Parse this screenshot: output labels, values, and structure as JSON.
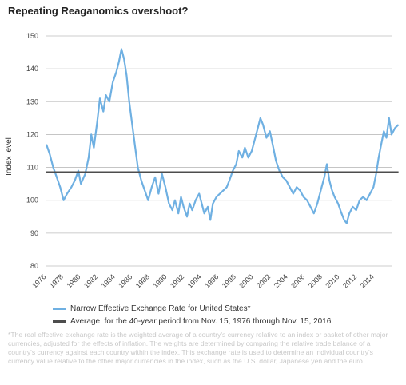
{
  "title": "Repeating Reaganomics overshoot?",
  "ylabel": "Index level",
  "footnote": "*The real effective exchange rate is the weighted average of a country's currency relative to an index or basket of other major currencies, adjusted for the effects of inflation. The weights are determined by comparing the relative trade balance of a country's currency against each country within the index. This exchange rate is used to determine an individual country's currency value relative to the other major currencies in the index, such as the U.S. dollar, Japanese yen and the euro.",
  "colors": {
    "series": "#6fb0e2",
    "average": "#4d4d4d",
    "grid": "#bdbdbd"
  },
  "chart_data": {
    "type": "line",
    "title": "Repeating Reaganomics overshoot?",
    "ylabel": "Index level",
    "xlabel": "",
    "ylim": [
      80,
      150
    ],
    "xlim": [
      1976,
      2016
    ],
    "grid": true,
    "legend_position": "bottom",
    "y_ticks": [
      80,
      90,
      100,
      110,
      120,
      130,
      140,
      150
    ],
    "x_ticks": [
      "1976",
      "1978",
      "1980",
      "1982",
      "1984",
      "1986",
      "1988",
      "1990",
      "1992",
      "1994",
      "1996",
      "1998",
      "2000",
      "2002",
      "2004",
      "2006",
      "2008",
      "2010",
      "2012",
      "2014"
    ],
    "series": [
      {
        "name": "Narrow Effective Exchange Rate for United States*",
        "x": [
          1976.0,
          1976.4,
          1976.8,
          1977.2,
          1977.6,
          1978.0,
          1978.4,
          1978.9,
          1979.3,
          1979.7,
          1980.0,
          1980.5,
          1980.9,
          1981.2,
          1981.5,
          1981.9,
          1982.2,
          1982.6,
          1982.9,
          1983.3,
          1983.7,
          1984.1,
          1984.4,
          1984.7,
          1985.0,
          1985.3,
          1985.6,
          1985.9,
          1986.3,
          1986.6,
          1987.0,
          1987.4,
          1987.8,
          1988.2,
          1988.6,
          1989.0,
          1989.4,
          1989.8,
          1990.2,
          1990.6,
          1990.9,
          1991.3,
          1991.6,
          1991.9,
          1992.3,
          1992.6,
          1992.9,
          1993.3,
          1993.7,
          1994.0,
          1994.3,
          1994.7,
          1995.0,
          1995.3,
          1995.7,
          1996.1,
          1996.5,
          1996.9,
          1997.2,
          1997.6,
          1998.0,
          1998.3,
          1998.7,
          1999.0,
          1999.4,
          1999.8,
          2000.2,
          2000.5,
          2000.8,
          2001.1,
          2001.5,
          2001.9,
          2002.3,
          2002.6,
          2003.0,
          2003.4,
          2003.8,
          2004.2,
          2004.6,
          2005.0,
          2005.4,
          2005.8,
          2006.2,
          2006.6,
          2007.0,
          2007.4,
          2007.8,
          2008.2,
          2008.5,
          2008.8,
          2009.1,
          2009.4,
          2009.8,
          2010.2,
          2010.5,
          2010.8,
          2011.1,
          2011.5,
          2011.9,
          2012.3,
          2012.7,
          2013.1,
          2013.5,
          2013.9,
          2014.2,
          2014.5,
          2014.8,
          2015.1,
          2015.4,
          2015.7,
          2016.0,
          2016.4,
          2016.8
        ],
        "values": [
          117,
          114,
          110,
          107,
          104,
          100,
          102,
          104,
          106,
          109,
          105,
          108,
          113,
          120,
          116,
          124,
          131,
          127,
          132,
          130,
          136,
          139,
          142,
          146,
          143,
          138,
          130,
          124,
          116,
          110,
          106,
          103,
          100,
          104,
          107,
          102,
          108,
          104,
          99,
          97,
          100,
          96,
          101,
          98,
          95,
          99,
          97,
          100,
          102,
          99,
          96,
          98,
          94,
          99,
          101,
          102,
          103,
          104,
          106,
          109,
          111,
          115,
          113,
          116,
          113,
          115,
          119,
          122,
          125,
          123,
          119,
          121,
          116,
          112,
          109,
          107,
          106,
          104,
          102,
          104,
          103,
          101,
          100,
          98,
          96,
          99,
          103,
          107,
          111,
          106,
          103,
          101,
          99,
          96,
          94,
          93,
          96,
          98,
          97,
          100,
          101,
          100,
          102,
          104,
          108,
          113,
          117,
          121,
          119,
          125,
          120,
          122,
          123
        ]
      },
      {
        "name": "Average, for the 40-year period from Nov. 15, 1976 through Nov. 15, 2016.",
        "x": [
          1976.0,
          2016.8
        ],
        "values": [
          108.5,
          108.5
        ]
      }
    ]
  }
}
